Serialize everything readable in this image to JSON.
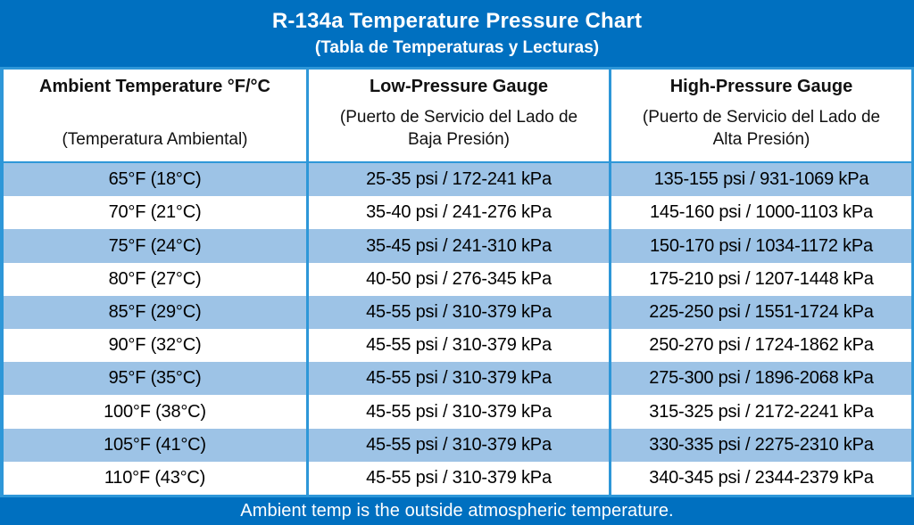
{
  "banner": {
    "title": "R-134a Temperature Pressure Chart",
    "subtitle": "(Tabla de Temperaturas y Lecturas)"
  },
  "footer": {
    "note": "Ambient temp is the outside atmospheric temperature."
  },
  "colors": {
    "banner_bg": "#0070C0",
    "footer_bg": "#0070C0",
    "border_blue": "#2E97D8",
    "row_stripe_bg": "#9DC3E6",
    "row_plain_bg": "#FFFFFF",
    "banner_text": "#FFFFFF",
    "table_text": "#000000"
  },
  "chart_data": {
    "type": "table",
    "title": "R-134a Temperature Pressure Chart",
    "subtitle": "(Tabla de Temperaturas y Lecturas)",
    "columns": [
      {
        "en": "Ambient Temperature °F/°C",
        "es": "(Temperatura Ambiental)"
      },
      {
        "en": "Low-Pressure Gauge",
        "es": "(Puerto de Servicio del Lado de\nBaja Presión)"
      },
      {
        "en": "High-Pressure Gauge",
        "es": "(Puerto de Servicio del Lado de\nAlta Presión)"
      }
    ],
    "rows": [
      [
        "65°F (18°C)",
        "25-35 psi / 172-241 kPa",
        "135-155 psi / 931-1069 kPa"
      ],
      [
        "70°F (21°C)",
        "35-40 psi / 241-276 kPa",
        "145-160 psi / 1000-1103 kPa"
      ],
      [
        "75°F (24°C)",
        "35-45 psi / 241-310 kPa",
        "150-170 psi / 1034-1172 kPa"
      ],
      [
        "80°F (27°C)",
        "40-50 psi / 276-345 kPa",
        "175-210 psi / 1207-1448 kPa"
      ],
      [
        "85°F (29°C)",
        "45-55 psi / 310-379 kPa",
        "225-250 psi / 1551-1724 kPa"
      ],
      [
        "90°F (32°C)",
        "45-55 psi / 310-379 kPa",
        "250-270 psi / 1724-1862 kPa"
      ],
      [
        "95°F (35°C)",
        "45-55 psi / 310-379 kPa",
        "275-300 psi / 1896-2068 kPa"
      ],
      [
        "100°F (38°C)",
        "45-55 psi / 310-379 kPa",
        "315-325 psi / 2172-2241 kPa"
      ],
      [
        "105°F (41°C)",
        "45-55 psi / 310-379 kPa",
        "330-335 psi / 2275-2310 kPa"
      ],
      [
        "110°F (43°C)",
        "45-55 psi / 310-379 kPa",
        "340-345 psi / 2344-2379 kPa"
      ]
    ],
    "note": "Ambient temp is the outside atmospheric temperature."
  }
}
